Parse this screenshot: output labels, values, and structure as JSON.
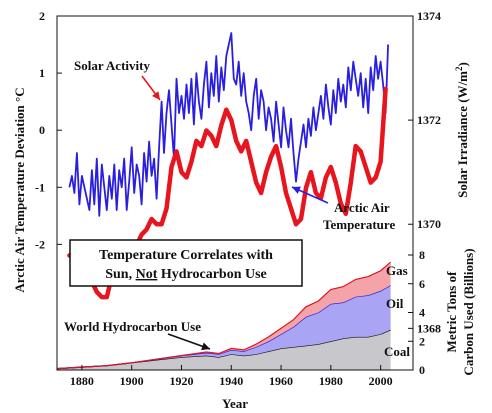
{
  "chart_data": {
    "type": "line",
    "x_range": [
      1870,
      2013
    ],
    "x_ticks": [
      "1880",
      "1900",
      "1920",
      "1940",
      "1960",
      "1980",
      "2000"
    ],
    "xlabel": "Year",
    "y_left": {
      "label": "Arctic Air Temperature Deviation °C",
      "ticks": [
        "-2",
        "-1",
        "0",
        "1",
        "2"
      ],
      "range": [
        -4.2,
        2.0
      ]
    },
    "y_right_top": {
      "label": "Solar Irradiance (W/m²)",
      "label_main": "Solar Irradiance (W/m",
      "label_sup": "2",
      "label_end": ")",
      "ticks": [
        "1368",
        "1370",
        "1372",
        "1374"
      ],
      "range": [
        1367.2,
        1374
      ]
    },
    "y_right_bottom": {
      "label_line1": "Metric Tons of",
      "label_line2": "Carbon Used (Billions)",
      "ticks": [
        "0",
        "2",
        "4",
        "6",
        "8"
      ],
      "range": [
        0,
        8
      ]
    },
    "series": [
      {
        "name": "Arctic Air Temperature",
        "color": "#2a1fe0",
        "axis": "left",
        "x": [
          1875,
          1876,
          1877,
          1878,
          1879,
          1880,
          1881,
          1882,
          1883,
          1884,
          1885,
          1886,
          1887,
          1888,
          1889,
          1890,
          1891,
          1892,
          1893,
          1894,
          1895,
          1896,
          1897,
          1898,
          1899,
          1900,
          1901,
          1902,
          1903,
          1904,
          1905,
          1906,
          1907,
          1908,
          1909,
          1910,
          1911,
          1912,
          1913,
          1914,
          1915,
          1916,
          1917,
          1918,
          1919,
          1920,
          1921,
          1922,
          1923,
          1924,
          1925,
          1926,
          1927,
          1928,
          1929,
          1930,
          1931,
          1932,
          1933,
          1934,
          1935,
          1936,
          1937,
          1938,
          1939,
          1940,
          1941,
          1942,
          1943,
          1944,
          1945,
          1946,
          1947,
          1948,
          1949,
          1950,
          1951,
          1952,
          1953,
          1954,
          1955,
          1956,
          1957,
          1958,
          1959,
          1960,
          1961,
          1962,
          1963,
          1964,
          1965,
          1966,
          1967,
          1968,
          1969,
          1970,
          1971,
          1972,
          1973,
          1974,
          1975,
          1976,
          1977,
          1978,
          1979,
          1980,
          1981,
          1982,
          1983,
          1984,
          1985,
          1986,
          1987,
          1988,
          1989,
          1990,
          1991,
          1992,
          1993,
          1994,
          1995,
          1996,
          1997,
          1998,
          1999,
          2000,
          2001,
          2002,
          2003
        ],
        "y": [
          -1.0,
          -0.8,
          -1.1,
          -0.4,
          -1.3,
          -0.8,
          -1.0,
          -1.2,
          -1.4,
          -0.7,
          -1.3,
          -0.5,
          -1.5,
          -0.6,
          -1.0,
          -1.4,
          -0.8,
          -1.2,
          -0.6,
          -1.4,
          -0.7,
          -1.0,
          -0.5,
          -1.4,
          -0.9,
          -0.3,
          -1.1,
          -0.6,
          -0.8,
          -1.3,
          -0.4,
          -0.9,
          -0.2,
          -0.8,
          -0.5,
          -1.2,
          -0.3,
          0.5,
          -0.4,
          0.3,
          0.7,
          0.1,
          -0.5,
          0.9,
          0.3,
          0.6,
          0.2,
          0.8,
          0.3,
          0.9,
          0.1,
          1.0,
          0.5,
          0.2,
          0.8,
          1.2,
          0.4,
          1.0,
          0.6,
          1.3,
          0.5,
          1.1,
          0.7,
          1.3,
          1.5,
          1.7,
          0.9,
          0.8,
          1.2,
          0.6,
          1.0,
          0.5,
          0.3,
          0.0,
          0.6,
          0.9,
          0.2,
          0.7,
          0.5,
          0.0,
          0.4,
          0.2,
          -0.2,
          0.5,
          0.1,
          -0.3,
          0.4,
          0.0,
          -0.3,
          0.2,
          -0.4,
          -0.9,
          -0.5,
          -0.2,
          0.1,
          -0.3,
          0.2,
          -0.1,
          0.4,
          0.0,
          0.3,
          0.6,
          0.2,
          0.8,
          0.4,
          0.1,
          0.7,
          0.3,
          0.9,
          0.5,
          0.8,
          0.4,
          1.1,
          0.7,
          1.2,
          0.9,
          0.6,
          1.0,
          0.4,
          0.9,
          0.3,
          1.1,
          0.7,
          1.3,
          0.9,
          1.2,
          0.8,
          0.3,
          1.5
        ]
      },
      {
        "name": "Solar Activity",
        "color": "#e8141e",
        "axis": "right_top",
        "x": [
          1875,
          1878,
          1880,
          1882,
          1884,
          1886,
          1888,
          1890,
          1892,
          1894,
          1896,
          1898,
          1900,
          1902,
          1904,
          1906,
          1908,
          1910,
          1912,
          1914,
          1916,
          1918,
          1920,
          1922,
          1924,
          1926,
          1928,
          1930,
          1932,
          1934,
          1936,
          1938,
          1940,
          1942,
          1944,
          1946,
          1948,
          1950,
          1952,
          1954,
          1956,
          1958,
          1960,
          1962,
          1964,
          1966,
          1968,
          1970,
          1972,
          1974,
          1976,
          1978,
          1980,
          1982,
          1984,
          1986,
          1988,
          1990,
          1992,
          1994,
          1996,
          1998,
          2000,
          2002
        ],
        "y": [
          1369.4,
          1369.5,
          1369.6,
          1369.3,
          1368.9,
          1368.7,
          1368.6,
          1368.6,
          1369.0,
          1369.2,
          1369.0,
          1369.1,
          1369.4,
          1369.6,
          1369.8,
          1369.9,
          1370.1,
          1370.0,
          1370.0,
          1370.3,
          1371.1,
          1371.4,
          1371.0,
          1370.9,
          1371.2,
          1371.6,
          1371.5,
          1371.8,
          1371.7,
          1371.5,
          1371.9,
          1372.2,
          1372.0,
          1371.6,
          1371.4,
          1371.6,
          1371.2,
          1370.8,
          1370.6,
          1371.0,
          1371.3,
          1371.5,
          1371.1,
          1370.6,
          1370.3,
          1370.0,
          1370.1,
          1370.7,
          1371.0,
          1370.6,
          1370.5,
          1370.9,
          1371.1,
          1370.8,
          1370.4,
          1370.2,
          1370.8,
          1371.5,
          1371.4,
          1371.1,
          1370.8,
          1370.9,
          1371.2,
          1372.6
        ]
      },
      {
        "name": "Coal",
        "axis": "right_bottom",
        "stack": "carbon",
        "color": "#c8c8cc",
        "line": "#111111",
        "x": [
          1870,
          1880,
          1890,
          1900,
          1910,
          1920,
          1930,
          1935,
          1940,
          1945,
          1950,
          1955,
          1960,
          1965,
          1970,
          1975,
          1980,
          1985,
          1990,
          1995,
          2000,
          2004
        ],
        "y": [
          0.1,
          0.2,
          0.3,
          0.5,
          0.7,
          0.9,
          1.0,
          0.9,
          1.1,
          1.0,
          1.1,
          1.3,
          1.5,
          1.6,
          1.7,
          1.8,
          2.0,
          2.2,
          2.3,
          2.3,
          2.5,
          2.8
        ]
      },
      {
        "name": "Oil",
        "axis": "right_bottom",
        "stack": "carbon",
        "color": "#aaa4f5",
        "line": "#1a14d8",
        "x": [
          1870,
          1880,
          1890,
          1900,
          1910,
          1920,
          1930,
          1935,
          1940,
          1945,
          1950,
          1955,
          1960,
          1965,
          1970,
          1975,
          1980,
          1985,
          1990,
          1995,
          2000,
          2004
        ],
        "y": [
          0.0,
          0.0,
          0.0,
          0.0,
          0.05,
          0.1,
          0.2,
          0.2,
          0.3,
          0.3,
          0.5,
          0.7,
          1.0,
          1.4,
          2.0,
          2.2,
          2.6,
          2.5,
          2.8,
          2.9,
          3.0,
          3.1
        ]
      },
      {
        "name": "Gas",
        "axis": "right_bottom",
        "stack": "carbon",
        "color": "#f4a4a8",
        "line": "#e01420",
        "x": [
          1870,
          1880,
          1890,
          1900,
          1910,
          1920,
          1930,
          1935,
          1940,
          1945,
          1950,
          1955,
          1960,
          1965,
          1970,
          1975,
          1980,
          1985,
          1990,
          1995,
          2000,
          2004
        ],
        "y": [
          0.0,
          0.0,
          0.0,
          0.0,
          0.0,
          0.0,
          0.05,
          0.05,
          0.1,
          0.1,
          0.2,
          0.3,
          0.4,
          0.5,
          0.7,
          0.8,
          1.0,
          1.1,
          1.2,
          1.3,
          1.4,
          1.6
        ]
      }
    ],
    "annotations": {
      "solar_activity": "Solar Activity",
      "arctic_line1": "Arctic Air",
      "arctic_line2": "Temperature",
      "hydrocarbon": "World Hydrocarbon Use",
      "gas": "Gas",
      "oil": "Oil",
      "coal": "Coal",
      "box_line1": "Temperature Correlates with",
      "box_line2_a": "Sun, ",
      "box_line2_b": "Not",
      "box_line2_c": " Hydrocarbon Use"
    },
    "colors": {
      "temperature": "#2a1fe0",
      "solar": "#e8141e",
      "arrow_red": "#e8141e",
      "arrow_blue": "#2a1fe0",
      "arrow_black": "#111111"
    }
  }
}
